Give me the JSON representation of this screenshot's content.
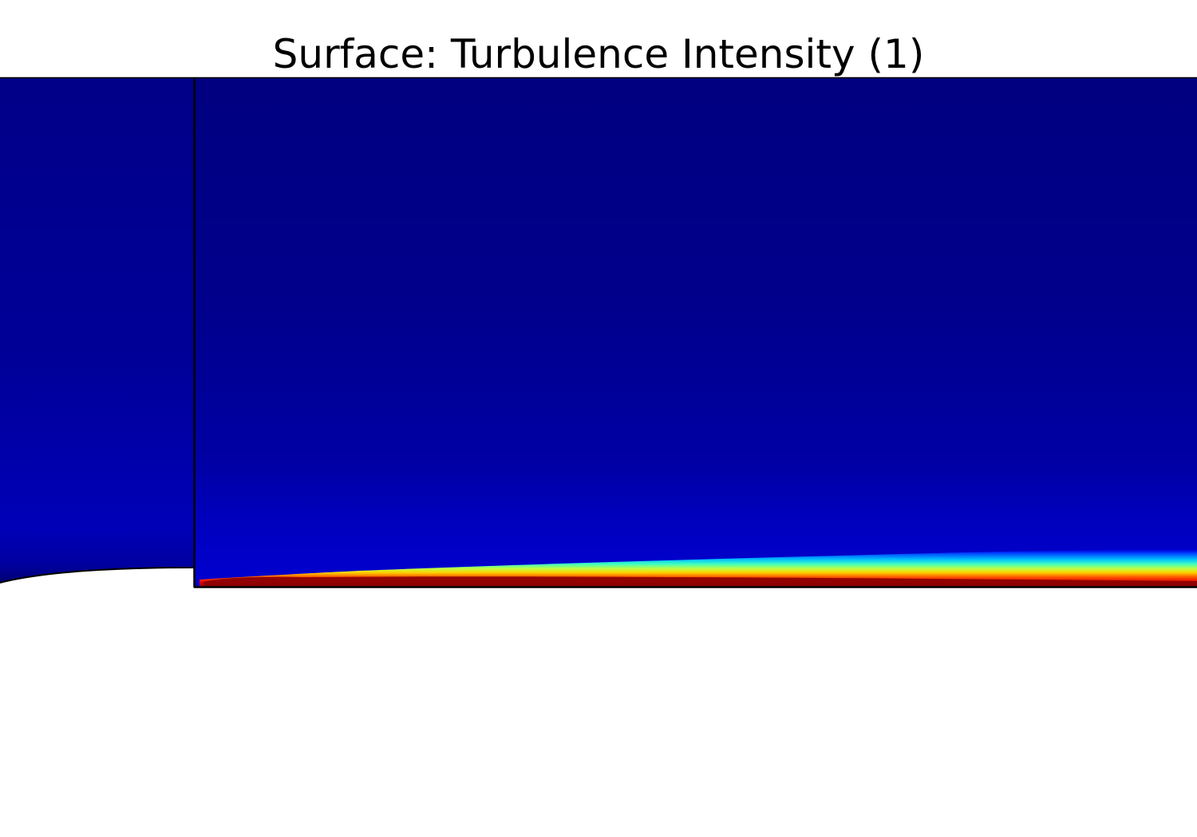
{
  "chart_data": {
    "type": "heatmap",
    "title": "Surface: Turbulence Intensity (1)",
    "xlabel": "",
    "ylabel": "",
    "colormap": "jet",
    "colors": {
      "background": "#000080",
      "near_wall_low": "#0000b0",
      "cyan": "#00ffff",
      "yellow": "#ffff00",
      "red": "#ff0000",
      "dark_red": "#800000",
      "boundary": "#000000"
    },
    "grid": false,
    "legend": "none"
  }
}
